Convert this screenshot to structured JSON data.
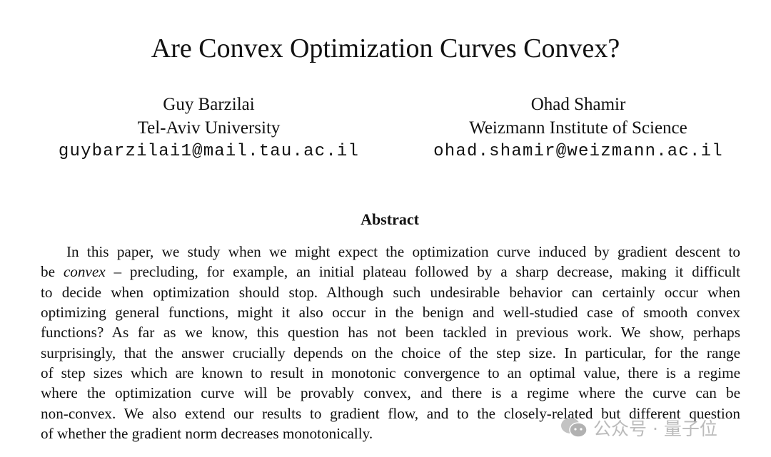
{
  "title": "Are Convex Optimization Curves Convex?",
  "authors": [
    {
      "name": "Guy Barzilai",
      "affiliation": "Tel-Aviv University",
      "email": "guybarzilai1@mail.tau.ac.il"
    },
    {
      "name": "Ohad Shamir",
      "affiliation": "Weizmann Institute of Science",
      "email": "ohad.shamir@weizmann.ac.il"
    }
  ],
  "abstract": {
    "heading": "Abstract",
    "line1": "In this paper, we study when we might expect the optimization curve induced by gradient descent to",
    "line2_pre": "be ",
    "line2_em": "convex",
    "line2_post": " – precluding, for example, an initial plateau followed by a sharp decrease, making it difficult",
    "lines": [
      "to decide when optimization should stop. Although such undesirable behavior can certainly occur when",
      "optimizing general functions, might it also occur in the benign and well-studied case of smooth convex",
      "functions? As far as we know, this question has not been tackled in previous work. We show, perhaps",
      "surprisingly, that the answer crucially depends on the choice of the step size. In particular, for the range",
      "of step sizes which are known to result in monotonic convergence to an optimal value, there is a regime",
      "where the optimization curve will be provably convex, and there is a regime where the curve can be",
      "non-convex. We also extend our results to gradient flow, and to the closely-related but different question",
      "of whether the gradient norm decreases monotonically."
    ]
  },
  "watermark": "公众号 · 量子位"
}
